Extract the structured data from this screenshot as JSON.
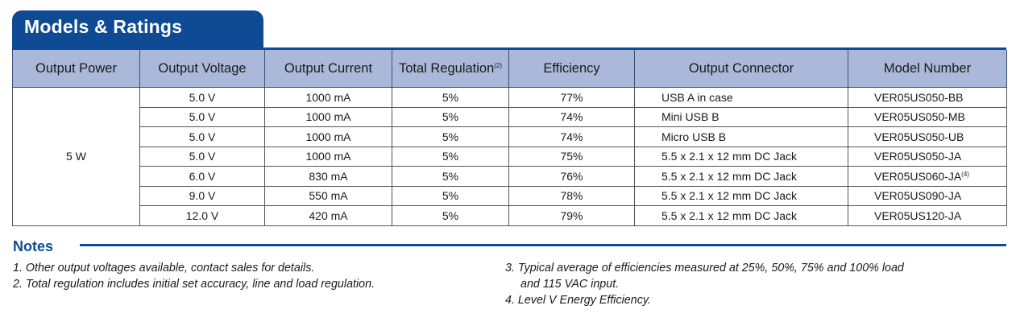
{
  "section": {
    "title": "Models & Ratings"
  },
  "table": {
    "headers": [
      "Output Power",
      "Output Voltage",
      "Output Current",
      "Total Regulation",
      "Efficiency",
      "Output Connector",
      "Model Number"
    ],
    "header_footnote": "(2)",
    "power": "5 W",
    "rows": [
      {
        "voltage": "5.0 V",
        "current": "1000 mA",
        "regulation": "5%",
        "efficiency": "77%",
        "connector": "USB A in case",
        "model": "VER05US050-BB",
        "model_note": ""
      },
      {
        "voltage": "5.0 V",
        "current": "1000 mA",
        "regulation": "5%",
        "efficiency": "74%",
        "connector": "Mini USB B",
        "model": "VER05US050-MB",
        "model_note": ""
      },
      {
        "voltage": "5.0 V",
        "current": "1000 mA",
        "regulation": "5%",
        "efficiency": "74%",
        "connector": "Micro USB B",
        "model": "VER05US050-UB",
        "model_note": ""
      },
      {
        "voltage": "5.0 V",
        "current": "1000 mA",
        "regulation": "5%",
        "efficiency": "75%",
        "connector": "5.5 x 2.1 x 12 mm DC Jack",
        "model": "VER05US050-JA",
        "model_note": ""
      },
      {
        "voltage": "6.0 V",
        "current": "830 mA",
        "regulation": "5%",
        "efficiency": "76%",
        "connector": "5.5 x 2.1 x 12 mm DC Jack",
        "model": "VER05US060-JA",
        "model_note": "(4)"
      },
      {
        "voltage": "9.0 V",
        "current": "550 mA",
        "regulation": "5%",
        "efficiency": "78%",
        "connector": "5.5 x 2.1 x 12 mm DC Jack",
        "model": "VER05US090-JA",
        "model_note": ""
      },
      {
        "voltage": "12.0 V",
        "current": "420 mA",
        "regulation": "5%",
        "efficiency": "79%",
        "connector": "5.5 x 2.1 x 12 mm DC Jack",
        "model": "VER05US120-JA",
        "model_note": ""
      }
    ]
  },
  "notes": {
    "title": "Notes",
    "items": [
      "1. Other output voltages available, contact sales for details.",
      "2. Total regulation includes initial set accuracy, line and load regulation.",
      "3. Typical average of efficiencies measured at 25%, 50%, 75% and 100% load",
      "and 115 VAC input.",
      "4. Level V Energy Efficiency."
    ]
  },
  "colors": {
    "brand_blue": "#0f4b94",
    "header_fill": "#aab9d9"
  }
}
